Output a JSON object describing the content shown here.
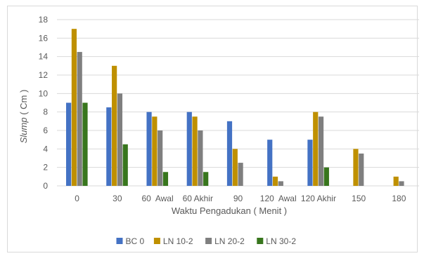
{
  "chart_data": {
    "type": "bar",
    "categories": [
      "0",
      "30",
      "60  Awal",
      "60 Akhir",
      "90",
      "120  Awal",
      "120 Akhir",
      "150",
      "180"
    ],
    "series": [
      {
        "name": "BC 0",
        "color": "#4472c4",
        "values": [
          9,
          8.5,
          8,
          8,
          7,
          5,
          5,
          null,
          null
        ]
      },
      {
        "name": "LN 10-2",
        "color": "#bf9000",
        "values": [
          17,
          13,
          7.5,
          7.5,
          4,
          1,
          8,
          4,
          1
        ]
      },
      {
        "name": "LN 20-2",
        "color": "#7f7f7f",
        "values": [
          14.5,
          10,
          6,
          6,
          2.5,
          0.5,
          7.5,
          3.5,
          0.5
        ]
      },
      {
        "name": "LN 30-2",
        "color": "#38761d",
        "values": [
          9,
          4.5,
          1.5,
          1.5,
          null,
          null,
          2,
          null,
          null
        ]
      }
    ],
    "y_ticks": [
      0,
      2,
      4,
      6,
      8,
      10,
      12,
      14,
      16,
      18
    ],
    "ylim": [
      0,
      18
    ],
    "xlabel": "Waktu Pengadukan ( Menit )",
    "ylabel_italic": "Slump",
    "ylabel_rest": " ( Cm )",
    "grid": true,
    "grid_color": "#d9d9d9",
    "legend_position": "bottom"
  }
}
